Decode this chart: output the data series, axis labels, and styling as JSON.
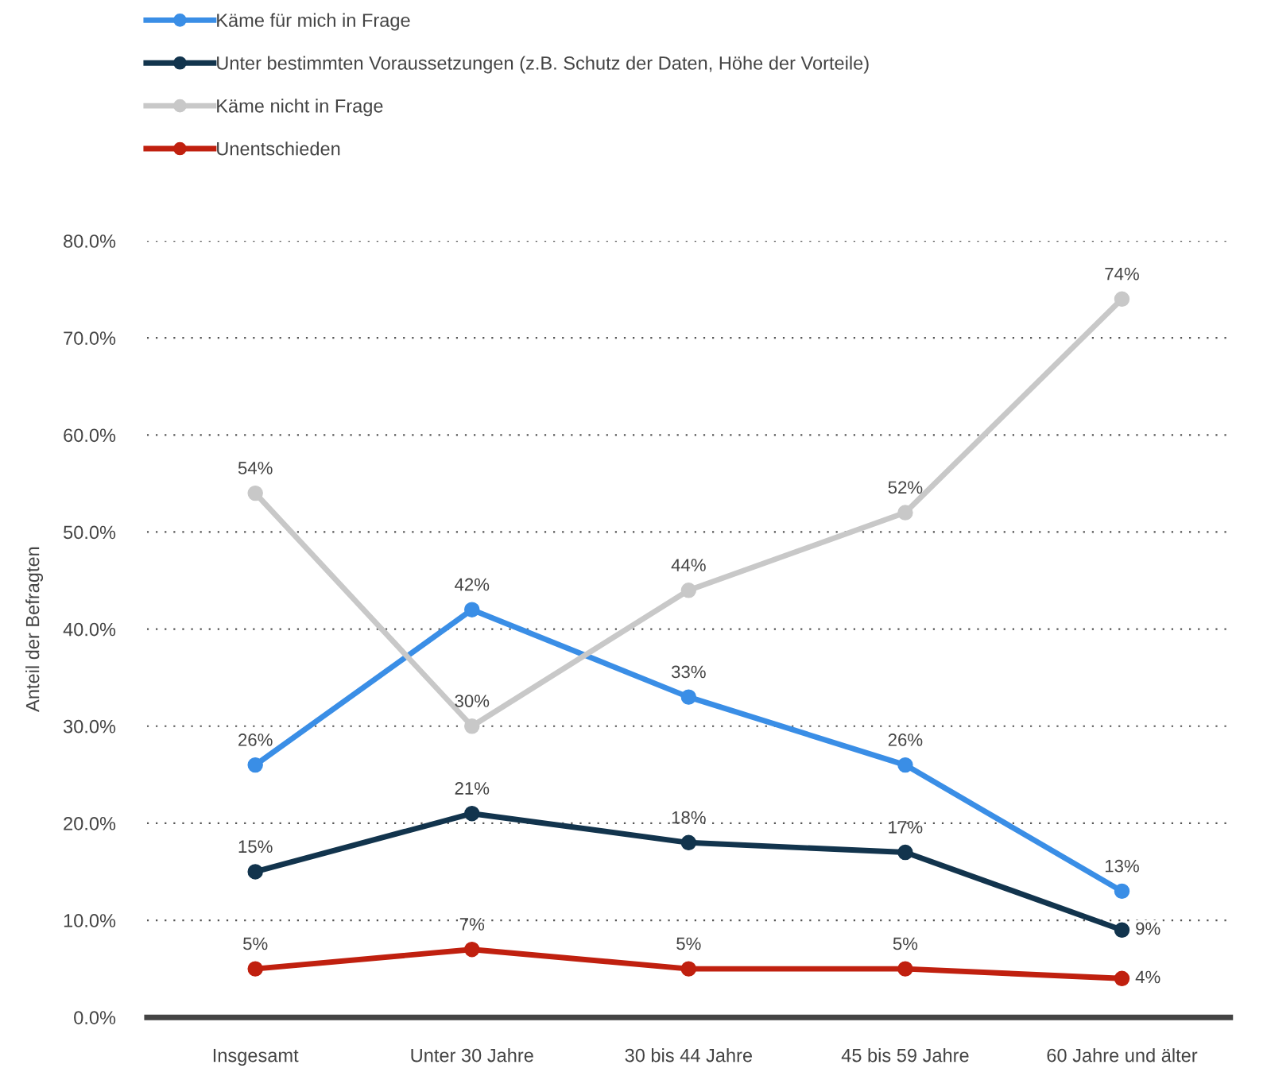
{
  "chart_data": {
    "type": "line",
    "ylabel": "Anteil der Befragten",
    "categories": [
      "Insgesamt",
      "Unter 30 Jahre",
      "30 bis 44 Jahre",
      "45 bis 59 Jahre",
      "60 Jahre und älter"
    ],
    "series": [
      {
        "name": "Käme für mich in Frage",
        "color": "#3a8ee6",
        "values": [
          26,
          42,
          33,
          26,
          13
        ],
        "value_labels": [
          "26%",
          "42%",
          "33%",
          "26%",
          "13%"
        ]
      },
      {
        "name": "Unter bestimmten Voraussetzungen (z.B. Schutz der Daten, Höhe der Vorteile)",
        "color": "#12344d",
        "values": [
          15,
          21,
          18,
          17,
          9
        ],
        "value_labels": [
          "15%",
          "21%",
          "18%",
          "17%",
          "9%"
        ]
      },
      {
        "name": "Käme nicht in Frage",
        "color": "#c8c8c8",
        "values": [
          54,
          30,
          44,
          52,
          74
        ],
        "value_labels": [
          "54%",
          "30%",
          "44%",
          "52%",
          "74%"
        ]
      },
      {
        "name": "Unentschieden",
        "color": "#c0200f",
        "values": [
          5,
          7,
          5,
          5,
          4
        ],
        "value_labels": [
          "5%",
          "7%",
          "5%",
          "5%",
          "4%"
        ]
      }
    ],
    "ylim": [
      0,
      80
    ],
    "yticks": [
      {
        "value": 0,
        "label": "0.0%"
      },
      {
        "value": 10,
        "label": "10.0%"
      },
      {
        "value": 20,
        "label": "20.0%"
      },
      {
        "value": 30,
        "label": "30.0%"
      },
      {
        "value": 40,
        "label": "40.0%"
      },
      {
        "value": 50,
        "label": "50.0%"
      },
      {
        "value": 60,
        "label": "60.0%"
      },
      {
        "value": 70,
        "label": "70.0%"
      },
      {
        "value": 80,
        "label": "80.0%"
      }
    ],
    "grid": "y",
    "legend": "top left",
    "marker": "circle",
    "line_style": "solid"
  }
}
